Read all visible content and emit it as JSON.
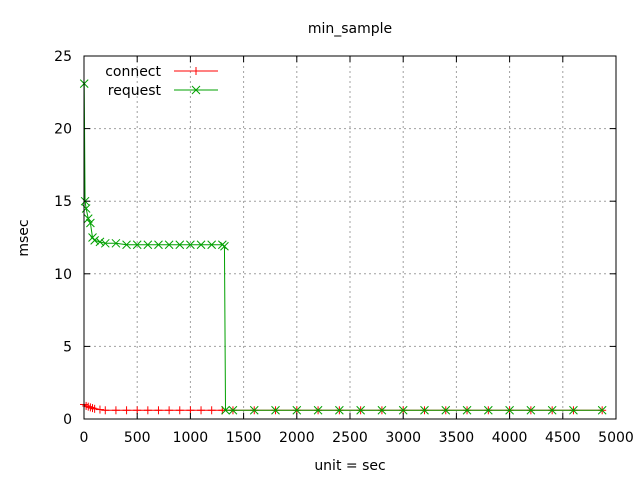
{
  "chart_data": {
    "type": "line",
    "title": "min_sample",
    "xlabel": "unit = sec",
    "ylabel": "msec",
    "xlim": [
      0,
      5000
    ],
    "ylim": [
      0,
      25
    ],
    "x_ticks": [
      "0",
      "500",
      "1000",
      "1500",
      "2000",
      "2500",
      "3000",
      "3500",
      "4000",
      "4500",
      "5000"
    ],
    "y_ticks": [
      "0",
      "5",
      "10",
      "15",
      "20",
      "25"
    ],
    "grid": true,
    "legend_position": "top-left",
    "series": [
      {
        "name": "connect",
        "color": "#ff0000",
        "marker": "plus",
        "points": [
          [
            0,
            1.0
          ],
          [
            20,
            0.9
          ],
          [
            40,
            0.85
          ],
          [
            60,
            0.8
          ],
          [
            80,
            0.75
          ],
          [
            100,
            0.7
          ],
          [
            150,
            0.65
          ],
          [
            200,
            0.6
          ],
          [
            300,
            0.6
          ],
          [
            400,
            0.6
          ],
          [
            500,
            0.6
          ],
          [
            600,
            0.6
          ],
          [
            700,
            0.6
          ],
          [
            800,
            0.6
          ],
          [
            900,
            0.6
          ],
          [
            1000,
            0.6
          ],
          [
            1100,
            0.6
          ],
          [
            1200,
            0.6
          ],
          [
            1300,
            0.6
          ],
          [
            1400,
            0.6
          ],
          [
            1600,
            0.6
          ],
          [
            1800,
            0.6
          ],
          [
            2000,
            0.6
          ],
          [
            2200,
            0.6
          ],
          [
            2400,
            0.6
          ],
          [
            2600,
            0.6
          ],
          [
            2800,
            0.6
          ],
          [
            3000,
            0.6
          ],
          [
            3200,
            0.6
          ],
          [
            3400,
            0.6
          ],
          [
            3600,
            0.6
          ],
          [
            3800,
            0.6
          ],
          [
            4000,
            0.6
          ],
          [
            4200,
            0.6
          ],
          [
            4400,
            0.6
          ],
          [
            4600,
            0.6
          ],
          [
            4870,
            0.6
          ]
        ]
      },
      {
        "name": "request",
        "color": "#00a000",
        "marker": "cross",
        "points": [
          [
            2,
            23.1
          ],
          [
            10,
            15.0
          ],
          [
            20,
            14.5
          ],
          [
            40,
            13.8
          ],
          [
            60,
            13.5
          ],
          [
            80,
            12.5
          ],
          [
            100,
            12.3
          ],
          [
            150,
            12.2
          ],
          [
            200,
            12.1
          ],
          [
            300,
            12.1
          ],
          [
            400,
            12.0
          ],
          [
            500,
            12.0
          ],
          [
            600,
            12.0
          ],
          [
            700,
            12.0
          ],
          [
            800,
            12.0
          ],
          [
            900,
            12.0
          ],
          [
            1000,
            12.0
          ],
          [
            1100,
            12.0
          ],
          [
            1200,
            12.0
          ],
          [
            1300,
            12.0
          ],
          [
            1320,
            11.9
          ],
          [
            1330,
            0.6
          ],
          [
            1400,
            0.6
          ],
          [
            1600,
            0.6
          ],
          [
            1800,
            0.6
          ],
          [
            2000,
            0.6
          ],
          [
            2200,
            0.6
          ],
          [
            2400,
            0.6
          ],
          [
            2600,
            0.6
          ],
          [
            2800,
            0.6
          ],
          [
            3000,
            0.6
          ],
          [
            3200,
            0.6
          ],
          [
            3400,
            0.6
          ],
          [
            3600,
            0.6
          ],
          [
            3800,
            0.6
          ],
          [
            4000,
            0.6
          ],
          [
            4200,
            0.6
          ],
          [
            4400,
            0.6
          ],
          [
            4600,
            0.6
          ],
          [
            4870,
            0.6
          ]
        ]
      }
    ]
  }
}
